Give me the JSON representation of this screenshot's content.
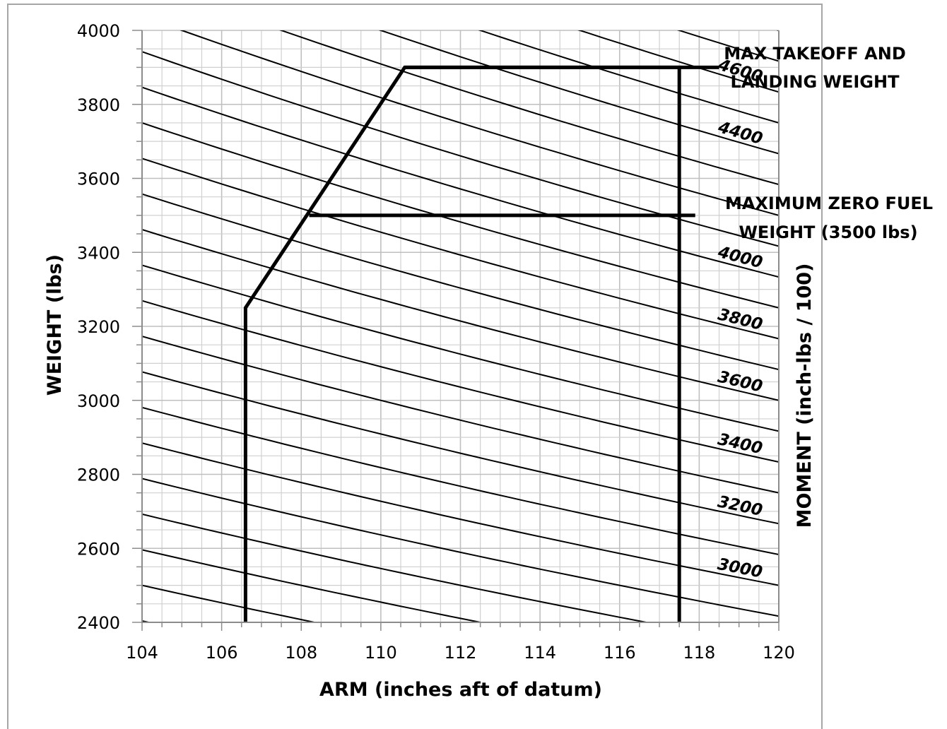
{
  "chart_data": {
    "type": "line",
    "title": "",
    "xlabel": "ARM (inches aft of datum)",
    "ylabel": "WEIGHT (lbs)",
    "y2label": "MOMENT (inch-lbs / 100)",
    "xlim": [
      104,
      120
    ],
    "ylim": [
      2400,
      4000
    ],
    "x_ticks": [
      "104",
      "106",
      "108",
      "110",
      "112",
      "114",
      "116",
      "118",
      "120"
    ],
    "y_ticks": [
      "2400",
      "2600",
      "2800",
      "3000",
      "3200",
      "3400",
      "3600",
      "3800",
      "4000"
    ],
    "grid": true,
    "x_minor_step": 0.5,
    "y_minor_step": 50,
    "moment_lines": [
      2500,
      2600,
      2700,
      2800,
      2900,
      3000,
      3100,
      3200,
      3300,
      3400,
      3500,
      3600,
      3700,
      3800,
      3900,
      4000,
      4100,
      4200,
      4300,
      4400,
      4500,
      4600,
      4700,
      4800
    ],
    "moment_labels": [
      {
        "value": 3000,
        "text": "3000"
      },
      {
        "value": 3200,
        "text": "3200"
      },
      {
        "value": 3400,
        "text": "3400"
      },
      {
        "value": 3600,
        "text": "3600"
      },
      {
        "value": 3800,
        "text": "3800"
      },
      {
        "value": 4000,
        "text": "4000"
      },
      {
        "value": 4400,
        "text": "4400"
      },
      {
        "value": 4600,
        "text": "4600"
      }
    ],
    "envelope": {
      "points": [
        {
          "x": 106.6,
          "y": 2400
        },
        {
          "x": 106.6,
          "y": 3250
        },
        {
          "x": 110.6,
          "y": 3900
        },
        {
          "x": 117.5,
          "y": 3900
        },
        {
          "x": 117.5,
          "y": 2400
        }
      ]
    },
    "limit_lines": [
      {
        "y": 3900,
        "x_start": 110.6,
        "x_end": 118.5,
        "label_lines": [
          "MAX TAKEOFF AND",
          "LANDING WEIGHT"
        ]
      },
      {
        "y": 3500,
        "x_start": 108.2,
        "x_end": 117.9,
        "label_lines": [
          "MAXIMUM ZERO FUEL",
          "WEIGHT (3500 lbs)"
        ]
      }
    ]
  }
}
